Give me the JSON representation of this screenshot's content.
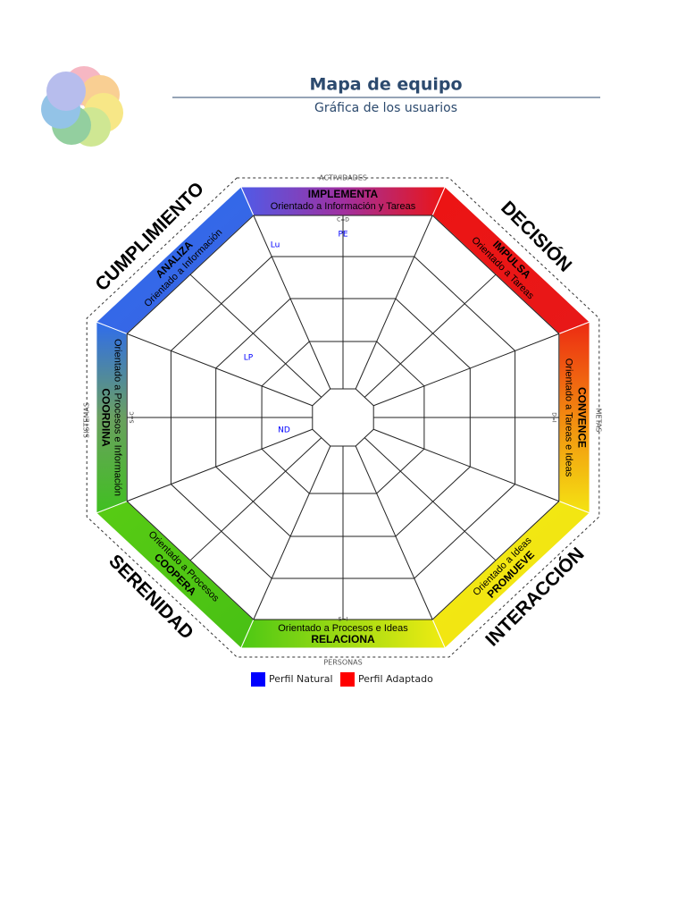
{
  "header": {
    "title": "Mapa de equipo",
    "subtitle": "Gráfica de los usuarios"
  },
  "diagram": {
    "bands": [
      {
        "title": "IMPLEMENTA",
        "subtitle": "Orientado a Información y Tareas"
      },
      {
        "title": "IMPULSA",
        "subtitle": "Orientado a Tareas"
      },
      {
        "title": "CONVENCE",
        "subtitle": "Orientado a Tareas e Ideas"
      },
      {
        "title": "PROMUEVE",
        "subtitle": "Orientado a Ideas"
      },
      {
        "title": "RELACIONA",
        "subtitle": "Orientado a Procesos e Ideas"
      },
      {
        "title": "COOPERA",
        "subtitle": "Orientado a Procesos"
      },
      {
        "title": "COORDINA",
        "subtitle": "Orientado a Procesos e Información"
      },
      {
        "title": "ANALIZA",
        "subtitle": "Orientado a Información"
      }
    ],
    "quadrants": [
      "DECISIÓN",
      "INTERACCIÓN",
      "SERENIDAD",
      "CUMPLIMIENTO"
    ],
    "axes": [
      "ACTIVIDADES",
      "METAS",
      "PERSONAS",
      "SISTEMAS"
    ],
    "axis_codes": [
      "C=D",
      "D=I",
      "S=I",
      "S=C"
    ],
    "users": [
      "Lu",
      "PE",
      "LP",
      "ND"
    ]
  },
  "legend": [
    {
      "label": "Perfil Natural",
      "color": "#0000ff"
    },
    {
      "label": "Perfil Adaptado",
      "color": "#ff0000"
    }
  ]
}
